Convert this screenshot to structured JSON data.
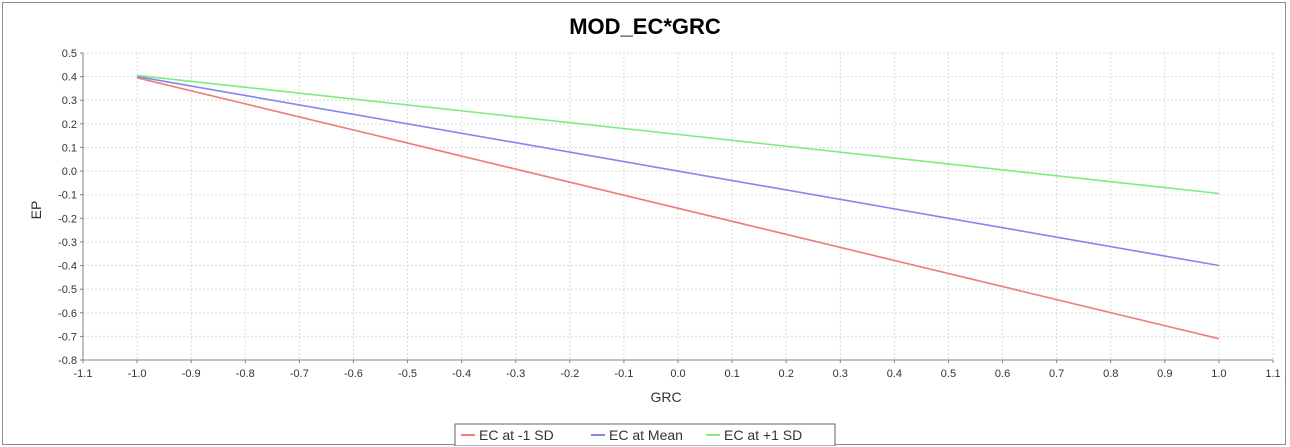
{
  "chart_data": {
    "type": "line",
    "title": "MOD_EC*GRC",
    "xlabel": "GRC",
    "ylabel": "EP",
    "xlim": [
      -1.1,
      1.1
    ],
    "ylim": [
      -0.8,
      0.5
    ],
    "xticks": [
      "-1.1",
      "-1.0",
      "-0.9",
      "-0.8",
      "-0.7",
      "-0.6",
      "-0.5",
      "-0.4",
      "-0.3",
      "-0.2",
      "-0.1",
      "0.0",
      "0.1",
      "0.2",
      "0.3",
      "0.4",
      "0.5",
      "0.6",
      "0.7",
      "0.8",
      "0.9",
      "1.0",
      "1.1"
    ],
    "yticks": [
      "0.5",
      "0.4",
      "0.3",
      "0.2",
      "0.1",
      "0.0",
      "-0.1",
      "-0.2",
      "-0.3",
      "-0.4",
      "-0.5",
      "-0.6",
      "-0.7",
      "-0.8"
    ],
    "grid": true,
    "legend_position": "bottom",
    "series": [
      {
        "name": "EC at -1 SD",
        "color": "#f07c7c",
        "x": [
          -1.0,
          1.0
        ],
        "y": [
          0.395,
          -0.71
        ]
      },
      {
        "name": "EC at Mean",
        "color": "#8585f0",
        "x": [
          -1.0,
          1.0
        ],
        "y": [
          0.4,
          -0.4
        ]
      },
      {
        "name": "EC at +1 SD",
        "color": "#7ded7d",
        "x": [
          -1.0,
          1.0
        ],
        "y": [
          0.405,
          -0.095
        ]
      }
    ]
  }
}
